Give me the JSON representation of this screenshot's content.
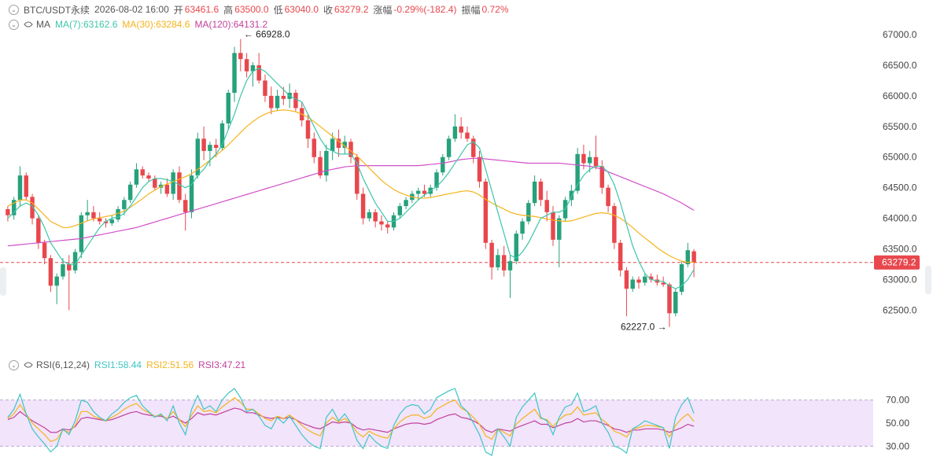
{
  "header": {
    "symbol": "BTC/USDT永续",
    "datetime": "2026-08-02 16:00",
    "open_label": "开",
    "open": "63461.6",
    "high_label": "高",
    "high": "63500.0",
    "low_label": "低",
    "low": "63040.0",
    "close_label": "收",
    "close": "63279.2",
    "change_label": "涨幅",
    "change": "-0.29%(-182.4)",
    "amp_label": "振幅",
    "amp": "0.72%"
  },
  "ma_legend": {
    "name": "MA",
    "ma7": "MA(7):63162.6",
    "ma30": "MA(30):63284.6",
    "ma120": "MA(120):64131.2"
  },
  "rsi_legend": {
    "name": "RSI(6,12,24)",
    "rsi1": "RSI1:58.44",
    "rsi2": "RSI2:51.56",
    "rsi3": "RSI3:47.21"
  },
  "price_axis": [
    "67000.0",
    "66500.0",
    "66000.0",
    "65500.0",
    "65000.0",
    "64500.0",
    "64000.0",
    "63500.0",
    "63000.0",
    "62500.0"
  ],
  "current_price_tag": "63279.2",
  "high_marker": "66928.0",
  "low_marker": "62227.0",
  "rsi_axis": [
    "70.00",
    "50.00",
    "30.00"
  ],
  "colors": {
    "up": "#26a17b",
    "down": "#e8474d",
    "ma7": "#3ec5a9",
    "ma30": "#f5b31b",
    "ma120": "#d14fc8",
    "rsi1": "#3ec5c5",
    "rsi2": "#f5b31b",
    "rsi3": "#c2409c",
    "rsi_band": "#f1e4fb"
  },
  "chart_data": {
    "type": "candlestick",
    "y_range": [
      62200,
      67100
    ],
    "rsi_range": [
      20,
      80
    ],
    "ohlc": [
      [
        64150,
        64200,
        63950,
        64050
      ],
      [
        64050,
        64350,
        63980,
        64300
      ],
      [
        64300,
        64850,
        64200,
        64700
      ],
      [
        64700,
        64750,
        64300,
        64350
      ],
      [
        64350,
        64400,
        63900,
        64000
      ],
      [
        64000,
        64050,
        63500,
        63600
      ],
      [
        63600,
        63650,
        63250,
        63350
      ],
      [
        63350,
        63400,
        62800,
        62900
      ],
      [
        62900,
        63100,
        62600,
        63050
      ],
      [
        63050,
        63350,
        63000,
        63250
      ],
      [
        63250,
        63400,
        62500,
        63150
      ],
      [
        63150,
        63500,
        63100,
        63450
      ],
      [
        63450,
        64100,
        63350,
        64050
      ],
      [
        64050,
        64300,
        63950,
        64100
      ],
      [
        64100,
        64200,
        63950,
        64000
      ],
      [
        64000,
        64100,
        63900,
        63950
      ],
      [
        63950,
        64000,
        63850,
        63920
      ],
      [
        63920,
        64050,
        63880,
        63980
      ],
      [
        63980,
        64200,
        63940,
        64150
      ],
      [
        64150,
        64350,
        64050,
        64300
      ],
      [
        64300,
        64600,
        64250,
        64550
      ],
      [
        64550,
        64900,
        64500,
        64800
      ],
      [
        64800,
        64850,
        64650,
        64700
      ],
      [
        64700,
        64750,
        64600,
        64650
      ],
      [
        64650,
        64700,
        64450,
        64500
      ],
      [
        64500,
        64600,
        64400,
        64550
      ],
      [
        64550,
        64650,
        64350,
        64400
      ],
      [
        64400,
        64800,
        64300,
        64750
      ],
      [
        64750,
        64850,
        64250,
        64300
      ],
      [
        64300,
        64400,
        63800,
        64100
      ],
      [
        64100,
        64800,
        64000,
        64700
      ],
      [
        64700,
        65400,
        64650,
        65300
      ],
      [
        65300,
        65500,
        64950,
        65100
      ],
      [
        65100,
        65250,
        64850,
        65200
      ],
      [
        65200,
        65300,
        65000,
        65150
      ],
      [
        65150,
        65600,
        65100,
        65550
      ],
      [
        65550,
        66100,
        65450,
        66050
      ],
      [
        66050,
        66800,
        65900,
        66700
      ],
      [
        66700,
        66928,
        66400,
        66600
      ],
      [
        66600,
        66700,
        66300,
        66400
      ],
      [
        66400,
        66550,
        66150,
        66500
      ],
      [
        66500,
        66700,
        66200,
        66250
      ],
      [
        66250,
        66350,
        65900,
        66000
      ],
      [
        66000,
        66150,
        65700,
        65800
      ],
      [
        65800,
        66100,
        65750,
        66000
      ],
      [
        66000,
        66150,
        65850,
        65950
      ],
      [
        65950,
        66200,
        65800,
        66050
      ],
      [
        66050,
        66100,
        65750,
        65800
      ],
      [
        65800,
        65900,
        65500,
        65600
      ],
      [
        65600,
        65700,
        65150,
        65300
      ],
      [
        65300,
        65400,
        64900,
        65000
      ],
      [
        65000,
        65100,
        64650,
        64700
      ],
      [
        64700,
        65200,
        64600,
        65100
      ],
      [
        65100,
        65400,
        64950,
        65300
      ],
      [
        65300,
        65450,
        65000,
        65150
      ],
      [
        65150,
        65350,
        65050,
        65250
      ],
      [
        65250,
        65300,
        64900,
        65000
      ],
      [
        65000,
        65050,
        64300,
        64400
      ],
      [
        64400,
        64500,
        63900,
        64000
      ],
      [
        64000,
        64150,
        63950,
        64100
      ],
      [
        64100,
        64150,
        63850,
        63950
      ],
      [
        63950,
        64050,
        63800,
        63900
      ],
      [
        63900,
        63950,
        63750,
        63850
      ],
      [
        63850,
        64100,
        63800,
        64050
      ],
      [
        64050,
        64250,
        64000,
        64200
      ],
      [
        64200,
        64350,
        64150,
        64300
      ],
      [
        64300,
        64450,
        64250,
        64400
      ],
      [
        64400,
        64500,
        64300,
        64450
      ],
      [
        64450,
        64550,
        64350,
        64400
      ],
      [
        64400,
        64550,
        64350,
        64500
      ],
      [
        64500,
        64800,
        64450,
        64750
      ],
      [
        64750,
        65050,
        64700,
        65000
      ],
      [
        65000,
        65350,
        64950,
        65300
      ],
      [
        65300,
        65700,
        65250,
        65500
      ],
      [
        65500,
        65650,
        65300,
        65400
      ],
      [
        65400,
        65500,
        65250,
        65300
      ],
      [
        65300,
        65350,
        64900,
        65000
      ],
      [
        65000,
        65100,
        64500,
        64600
      ],
      [
        64600,
        64650,
        63500,
        63600
      ],
      [
        63600,
        63650,
        63000,
        63200
      ],
      [
        63200,
        63500,
        63150,
        63400
      ],
      [
        63400,
        63550,
        63050,
        63150
      ],
      [
        63150,
        63400,
        62700,
        63300
      ],
      [
        63300,
        63800,
        63250,
        63750
      ],
      [
        63750,
        64000,
        63650,
        63950
      ],
      [
        63950,
        64300,
        63900,
        64250
      ],
      [
        64250,
        64700,
        64200,
        64600
      ],
      [
        64600,
        64650,
        64200,
        64300
      ],
      [
        64300,
        64450,
        63950,
        64100
      ],
      [
        64100,
        64200,
        63550,
        63650
      ],
      [
        63650,
        64050,
        63200,
        64000
      ],
      [
        64000,
        64350,
        63950,
        64300
      ],
      [
        64300,
        64550,
        64200,
        64450
      ],
      [
        64450,
        65150,
        64400,
        65050
      ],
      [
        65050,
        65200,
        64800,
        64900
      ],
      [
        64900,
        65100,
        64750,
        65000
      ],
      [
        65000,
        65350,
        64800,
        64850
      ],
      [
        64850,
        64950,
        64400,
        64500
      ],
      [
        64500,
        64550,
        64100,
        64200
      ],
      [
        64200,
        64250,
        63500,
        63600
      ],
      [
        63600,
        63650,
        63050,
        63150
      ],
      [
        63150,
        63200,
        62400,
        62850
      ],
      [
        62850,
        63050,
        62800,
        63000
      ],
      [
        63000,
        63050,
        62850,
        62950
      ],
      [
        62950,
        63100,
        62900,
        63050
      ],
      [
        63050,
        63100,
        62950,
        63000
      ],
      [
        63000,
        63080,
        62900,
        62950
      ],
      [
        62950,
        63050,
        62880,
        62920
      ],
      [
        62920,
        62950,
        62227,
        62450
      ],
      [
        62450,
        62850,
        62400,
        62800
      ],
      [
        62800,
        63300,
        62750,
        63250
      ],
      [
        63250,
        63600,
        63200,
        63480
      ],
      [
        63461.6,
        63500,
        63040,
        63279.2
      ]
    ],
    "ma7": [
      64000,
      64100,
      64200,
      64250,
      64200,
      64050,
      63850,
      63600,
      63450,
      63300,
      63250,
      63250,
      63400,
      63550,
      63700,
      63850,
      63950,
      64000,
      64020,
      64080,
      64200,
      64350,
      64500,
      64600,
      64650,
      64650,
      64630,
      64600,
      64550,
      64500,
      64550,
      64700,
      64800,
      64950,
      65050,
      65200,
      65450,
      65700,
      66000,
      66250,
      66400,
      66450,
      66400,
      66300,
      66200,
      66100,
      66000,
      65950,
      65900,
      65700,
      65500,
      65300,
      65150,
      65100,
      65050,
      65050,
      65050,
      64900,
      64650,
      64450,
      64250,
      64100,
      63950,
      63950,
      64000,
      64100,
      64200,
      64300,
      64380,
      64450,
      64520,
      64620,
      64750,
      64900,
      65050,
      65200,
      65250,
      65150,
      64800,
      64450,
      64100,
      63750,
      63400,
      63350,
      63450,
      63600,
      63800,
      64000,
      64050,
      64100,
      64100,
      64150,
      64350,
      64550,
      64700,
      64800,
      64850,
      64850,
      64750,
      64550,
      64250,
      63900,
      63550,
      63300,
      63100,
      63000,
      62980,
      62970,
      62900,
      62850,
      62900,
      63000,
      63162.6
    ],
    "ma30": [
      64200,
      64250,
      64300,
      64300,
      64250,
      64150,
      64050,
      63950,
      63900,
      63850,
      63850,
      63880,
      63920,
      63960,
      63990,
      64010,
      64030,
      64050,
      64080,
      64120,
      64180,
      64250,
      64320,
      64400,
      64460,
      64520,
      64560,
      64600,
      64640,
      64680,
      64730,
      64800,
      64870,
      64950,
      65030,
      65110,
      65200,
      65300,
      65400,
      65500,
      65580,
      65650,
      65700,
      65740,
      65760,
      65770,
      65760,
      65740,
      65700,
      65650,
      65580,
      65500,
      65420,
      65340,
      65260,
      65180,
      65100,
      65020,
      64920,
      64820,
      64720,
      64620,
      64540,
      64470,
      64420,
      64380,
      64350,
      64330,
      64330,
      64340,
      64360,
      64380,
      64400,
      64420,
      64440,
      64450,
      64430,
      64380,
      64310,
      64250,
      64200,
      64150,
      64100,
      64070,
      64050,
      64040,
      64030,
      64010,
      63990,
      63970,
      63960,
      63950,
      63960,
      63990,
      64020,
      64050,
      64080,
      64090,
      64080,
      64050,
      64000,
      63930,
      63850,
      63760,
      63680,
      63600,
      63520,
      63450,
      63390,
      63340,
      63300,
      63280,
      63284.6
    ],
    "ma120": [
      63550,
      63560,
      63570,
      63580,
      63590,
      63600,
      63610,
      63620,
      63630,
      63640,
      63650,
      63660,
      63670,
      63690,
      63710,
      63730,
      63750,
      63770,
      63790,
      63810,
      63830,
      63850,
      63880,
      63910,
      63940,
      63970,
      64000,
      64030,
      64060,
      64090,
      64120,
      64150,
      64180,
      64210,
      64240,
      64270,
      64300,
      64330,
      64360,
      64390,
      64420,
      64450,
      64480,
      64510,
      64540,
      64570,
      64600,
      64630,
      64660,
      64690,
      64720,
      64750,
      64780,
      64800,
      64820,
      64840,
      64850,
      64860,
      64860,
      64860,
      64860,
      64860,
      64860,
      64860,
      64860,
      64860,
      64860,
      64860,
      64870,
      64880,
      64890,
      64900,
      64920,
      64940,
      64960,
      64970,
      64980,
      64980,
      64970,
      64960,
      64950,
      64940,
      64930,
      64920,
      64910,
      64900,
      64900,
      64900,
      64900,
      64900,
      64900,
      64890,
      64880,
      64870,
      64860,
      64850,
      64830,
      64800,
      64760,
      64720,
      64680,
      64640,
      64600,
      64560,
      64520,
      64480,
      64440,
      64400,
      64350,
      64300,
      64250,
      64190,
      64131.2
    ],
    "rsi1": [
      55,
      62,
      75,
      58,
      45,
      38,
      32,
      25,
      30,
      45,
      40,
      52,
      70,
      68,
      60,
      55,
      52,
      58,
      62,
      68,
      72,
      74,
      65,
      60,
      55,
      58,
      52,
      65,
      50,
      40,
      62,
      74,
      62,
      65,
      60,
      70,
      76,
      80,
      72,
      60,
      62,
      56,
      48,
      45,
      55,
      50,
      56,
      48,
      40,
      34,
      30,
      28,
      55,
      62,
      52,
      58,
      50,
      35,
      28,
      40,
      34,
      30,
      28,
      48,
      58,
      64,
      66,
      65,
      58,
      62,
      72,
      75,
      78,
      80,
      65,
      60,
      50,
      40,
      25,
      22,
      45,
      38,
      30,
      55,
      64,
      70,
      76,
      55,
      52,
      40,
      55,
      64,
      66,
      76,
      60,
      62,
      65,
      50,
      42,
      30,
      28,
      24,
      45,
      48,
      52,
      50,
      48,
      46,
      28,
      55,
      66,
      72,
      58.44
    ],
    "rsi2": [
      54,
      58,
      66,
      58,
      50,
      45,
      40,
      34,
      36,
      44,
      42,
      48,
      60,
      60,
      56,
      54,
      52,
      55,
      58,
      62,
      65,
      67,
      62,
      59,
      56,
      57,
      54,
      60,
      53,
      47,
      57,
      65,
      60,
      61,
      59,
      64,
      68,
      72,
      68,
      62,
      62,
      58,
      54,
      52,
      56,
      54,
      57,
      53,
      48,
      44,
      41,
      39,
      50,
      55,
      51,
      54,
      50,
      42,
      38,
      43,
      40,
      38,
      37,
      45,
      51,
      55,
      57,
      57,
      54,
      56,
      62,
      65,
      68,
      70,
      63,
      60,
      55,
      49,
      39,
      36,
      45,
      42,
      39,
      49,
      54,
      58,
      62,
      54,
      53,
      47,
      53,
      57,
      58,
      64,
      57,
      58,
      59,
      53,
      49,
      43,
      41,
      38,
      45,
      46,
      48,
      48,
      47,
      46,
      38,
      48,
      54,
      58,
      51.56
    ],
    "rsi3": [
      53,
      55,
      60,
      56,
      52,
      49,
      46,
      42,
      42,
      45,
      44,
      47,
      54,
      55,
      54,
      53,
      52,
      53,
      55,
      57,
      59,
      60,
      58,
      57,
      56,
      56,
      54,
      56,
      53,
      50,
      54,
      59,
      57,
      58,
      57,
      59,
      61,
      63,
      62,
      59,
      59,
      57,
      55,
      54,
      55,
      54,
      55,
      53,
      50,
      48,
      46,
      45,
      48,
      51,
      50,
      51,
      50,
      46,
      44,
      45,
      44,
      43,
      42,
      45,
      47,
      49,
      50,
      50,
      49,
      50,
      53,
      55,
      57,
      58,
      55,
      54,
      52,
      49,
      44,
      42,
      45,
      44,
      43,
      46,
      48,
      50,
      52,
      49,
      49,
      46,
      48,
      50,
      51,
      54,
      51,
      52,
      52,
      50,
      48,
      45,
      44,
      42,
      44,
      44,
      45,
      45,
      45,
      44,
      42,
      44,
      46,
      49,
      47.21
    ]
  }
}
